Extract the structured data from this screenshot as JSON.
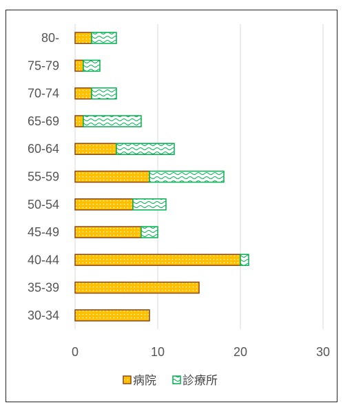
{
  "chart_data": {
    "type": "bar",
    "orientation": "horizontal",
    "stacked": true,
    "categories": [
      "30-34",
      "35-39",
      "40-44",
      "45-49",
      "50-54",
      "55-59",
      "60-64",
      "65-69",
      "70-74",
      "75-79",
      "80-"
    ],
    "series": [
      {
        "name": "病院",
        "values": [
          9,
          15,
          20,
          8,
          7,
          9,
          5,
          1,
          2,
          1,
          2
        ]
      },
      {
        "name": "診療所",
        "values": [
          0,
          0,
          1,
          2,
          4,
          9,
          7,
          7,
          3,
          2,
          3
        ]
      }
    ],
    "title": "",
    "xlabel": "",
    "ylabel": "",
    "xlim": [
      0,
      30
    ],
    "xticks": [
      0,
      10,
      20,
      30
    ],
    "grid": true,
    "legend_position": "bottom",
    "colors": {
      "hospital_fill": "#ffc000",
      "hospital_dot": "#ffffff",
      "hospital_border": "#8b4513",
      "clinic_fill": "#ffffff",
      "clinic_pattern": "#00b050",
      "clinic_border": "#00b050",
      "gridline": "#d9d9d9"
    }
  }
}
